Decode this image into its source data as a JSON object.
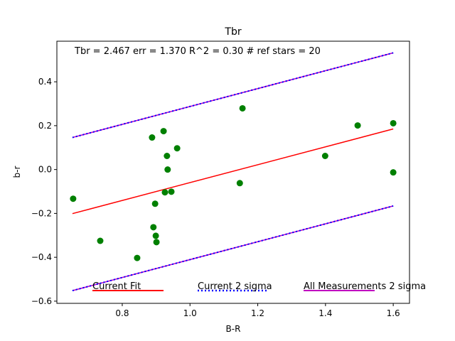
{
  "chart_data": {
    "type": "scatter",
    "title": "Tbr",
    "xlabel": "B-R",
    "ylabel": "b-r",
    "xlim": [
      0.607,
      1.648
    ],
    "ylim": [
      -0.61,
      0.585
    ],
    "xticks": [
      0.8,
      1.0,
      1.2,
      1.4,
      1.6
    ],
    "xtick_labels": [
      "0.8",
      "1.0",
      "1.2",
      "1.4",
      "1.6"
    ],
    "yticks": [
      -0.6,
      -0.4,
      -0.2,
      0.0,
      0.2,
      0.4
    ],
    "ytick_labels": [
      "−0.6",
      "−0.4",
      "−0.2",
      "0.0",
      "0.2",
      "0.4"
    ],
    "annotation": "Tbr =  2.467 err = 1.370  R^2 = 0.30  # ref stars =  20",
    "points": {
      "color": "#008000",
      "x": [
        0.655,
        0.735,
        0.844,
        0.888,
        0.892,
        0.897,
        0.899,
        0.901,
        0.922,
        0.926,
        0.932,
        0.934,
        0.945,
        0.962,
        1.147,
        1.155,
        1.399,
        1.495,
        1.6,
        1.6
      ],
      "y": [
        -0.133,
        -0.325,
        -0.403,
        0.146,
        -0.263,
        -0.156,
        -0.302,
        -0.331,
        0.175,
        -0.104,
        0.062,
        0.0,
        -0.101,
        0.097,
        -0.062,
        0.279,
        0.062,
        0.201,
        0.211,
        -0.013
      ]
    },
    "lines": [
      {
        "name": "Current Fit",
        "color": "#ff0000",
        "style": "solid",
        "x": [
          0.653,
          1.6
        ],
        "y": [
          -0.201,
          0.185
        ]
      },
      {
        "name": "All Measurements 2 sigma upper",
        "color": "#bf00bf",
        "style": "solid",
        "x": [
          0.653,
          1.6
        ],
        "y": [
          0.146,
          0.532
        ]
      },
      {
        "name": "All Measurements 2 sigma lower",
        "color": "#bf00bf",
        "style": "solid",
        "x": [
          0.653,
          1.6
        ],
        "y": [
          -0.552,
          -0.166
        ]
      },
      {
        "name": "Current 2 sigma upper",
        "color": "#0000ff",
        "style": "dotted",
        "x": [
          0.653,
          1.6
        ],
        "y": [
          0.146,
          0.532
        ]
      },
      {
        "name": "Current 2 sigma lower",
        "color": "#0000ff",
        "style": "dotted",
        "x": [
          0.653,
          1.6
        ],
        "y": [
          -0.552,
          -0.166
        ]
      }
    ],
    "legend": [
      {
        "label": "Current Fit",
        "color": "#ff0000",
        "style": "solid"
      },
      {
        "label": "Current 2 sigma",
        "color": "#0000ff",
        "style": "dotted"
      },
      {
        "label": "All Measurements 2 sigma",
        "color": "#bf00bf",
        "style": "solid"
      }
    ],
    "legend_placement": "bottom",
    "grid": false
  }
}
